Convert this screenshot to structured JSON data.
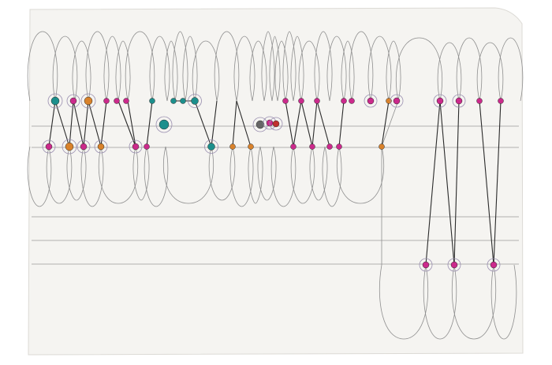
{
  "image": {
    "kind": "photograph of a hand-drawn graphic score on paper",
    "colors": {
      "background": "#ffffff",
      "paper": "#f5f4f1",
      "paper_edge": "#dcdad5",
      "ruled_line": "#9a9a9a",
      "pencil": "#8f8f8f",
      "ink": "#2a2a2a",
      "magenta": "#cc2a8c",
      "teal": "#1c8f8c",
      "orange": "#d9822b",
      "gray_dot": "#666666",
      "red_dot": "#c0312d",
      "ring": "#9a8fb0",
      "faint_stamp": "#f0dcd6"
    },
    "elements": [
      "paper-sheet",
      "ruled-lines",
      "pencil-loops",
      "ink-connecting-lines",
      "colored-dots"
    ],
    "faint_stamp_text": ""
  }
}
